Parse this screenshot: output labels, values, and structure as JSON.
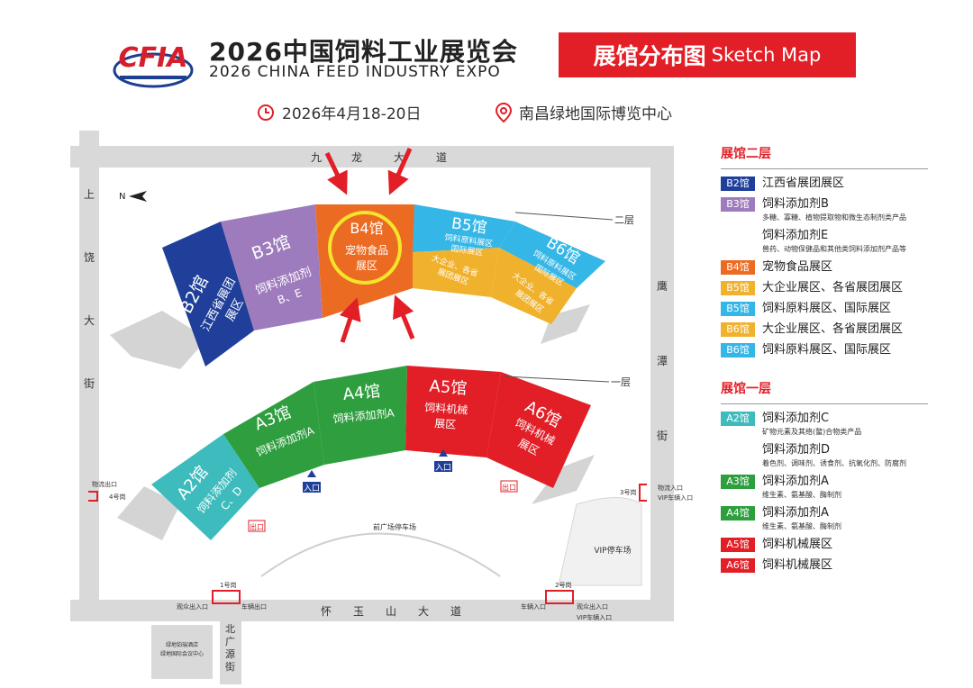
{
  "header": {
    "logo_text": "CFIA",
    "title": "2026中国饲料工业展览会",
    "subtitle": "2026 CHINA FEED INDUSTRY EXPO",
    "badge_cn": "展馆分布图",
    "badge_en": "Sketch Map",
    "date": "2026年4月18-20日",
    "venue": "南昌绿地国际博览中心"
  },
  "map": {
    "north": "N",
    "roads": {
      "top": [
        "九",
        "龙",
        "大",
        "道"
      ],
      "bottom": [
        "怀",
        "玉",
        "山",
        "大",
        "道"
      ],
      "left": [
        "上",
        "饶",
        "大",
        "街"
      ],
      "right": [
        "鹰",
        "潭",
        "街"
      ],
      "bottom_left": [
        "北",
        "广",
        "源",
        "街"
      ]
    },
    "floor2": "二层",
    "floor1": "一层",
    "halls": {
      "B2": {
        "name": "B2馆",
        "desc1": "江西省展团",
        "desc2": "展区",
        "color": "#1f3f9a"
      },
      "B3": {
        "name": "B3馆",
        "desc1": "饲料添加剂",
        "desc2": "B、E",
        "color": "#9e7bbd"
      },
      "B4": {
        "name": "B4馆",
        "desc1": "宠物食品",
        "desc2": "展区",
        "color": "#ec6b23"
      },
      "B5": {
        "name": "B5馆",
        "desc1": "饲料原料展区",
        "desc2": "国际展区",
        "desc3": "大企业、各省",
        "desc4": "展团展区",
        "color_top": "#34b6e6",
        "color_bottom": "#f0b12c"
      },
      "B6": {
        "name": "B6馆",
        "desc1": "饲料原料展区",
        "desc2": "国际展区",
        "desc3": "大企业、各省",
        "desc4": "展团展区",
        "color_top": "#34b6e6",
        "color_bottom": "#f0b12c"
      },
      "A2": {
        "name": "A2馆",
        "desc1": "饲料添加剂",
        "desc2": "C、D",
        "color": "#3dbbbd"
      },
      "A3": {
        "name": "A3馆",
        "desc1": "饲料添加剂A",
        "color": "#2e9e3e"
      },
      "A4": {
        "name": "A4馆",
        "desc1": "饲料添加剂A",
        "color": "#2e9e3e"
      },
      "A5": {
        "name": "A5馆",
        "desc1": "饲料机械",
        "desc2": "展区",
        "color": "#e21e26"
      },
      "A6": {
        "name": "A6馆",
        "desc1": "饲料机械",
        "desc2": "展区",
        "color": "#e21e26"
      }
    },
    "labels": {
      "entrance": "入口",
      "exit": "出口",
      "front_parking": "前广场停车场",
      "vip_parking": "VIP停车场",
      "logistics_exit": "物流出口",
      "gate4": "4号岗",
      "gate3": "3号岗",
      "gate1": "1号岗",
      "gate2": "2号岗",
      "logistics_entrance": "物流入口",
      "vip_vehicle_entrance": "VIP车辆入口",
      "audience_exit": "观众出入口",
      "vehicle_exit": "车辆出口",
      "vehicle_entrance": "车辆入口",
      "hotel1": "绿地铂瑞酒店",
      "hotel2": "绿地国际会议中心"
    }
  },
  "legend": {
    "floor2_title": "展馆二层",
    "floor1_title": "展馆一层",
    "floor2": [
      {
        "tag": "B2馆",
        "color": "#1f3f9a",
        "name": "江西省展团展区"
      },
      {
        "tag": "B3馆",
        "color": "#9e7bbd",
        "name": "饲料添加剂B",
        "desc": "多糖、寡糖、植物提取物和微生态制剂类产品"
      },
      {
        "tag": "",
        "color": "",
        "name": "饲料添加剂E",
        "desc": "兽药、动物保健品和其他类饲料添加剂产品等"
      },
      {
        "tag": "B4馆",
        "color": "#ec6b23",
        "name": "宠物食品展区"
      },
      {
        "tag": "B5馆",
        "color": "#f0b12c",
        "name": "大企业展区、各省展团展区"
      },
      {
        "tag": "B5馆",
        "color": "#34b6e6",
        "name": "饲料原料展区、国际展区"
      },
      {
        "tag": "B6馆",
        "color": "#f0b12c",
        "name": "大企业展区、各省展团展区"
      },
      {
        "tag": "B6馆",
        "color": "#34b6e6",
        "name": "饲料原料展区、国际展区"
      }
    ],
    "floor1": [
      {
        "tag": "A2馆",
        "color": "#3dbbbd",
        "name": "饲料添加剂C",
        "desc": "矿物元素及其络(螯)合物类产品"
      },
      {
        "tag": "",
        "color": "",
        "name": "饲料添加剂D",
        "desc": "着色剂、调味剂、诱食剂、抗氧化剂、防腐剂"
      },
      {
        "tag": "A3馆",
        "color": "#2e9e3e",
        "name": "饲料添加剂A",
        "desc": "维生素、氨基酸、酶制剂"
      },
      {
        "tag": "A4馆",
        "color": "#2e9e3e",
        "name": "饲料添加剂A",
        "desc": "维生素、氨基酸、酶制剂"
      },
      {
        "tag": "A5馆",
        "color": "#e21e26",
        "name": "饲料机械展区"
      },
      {
        "tag": "A6馆",
        "color": "#e21e26",
        "name": "饲料机械展区"
      }
    ]
  }
}
